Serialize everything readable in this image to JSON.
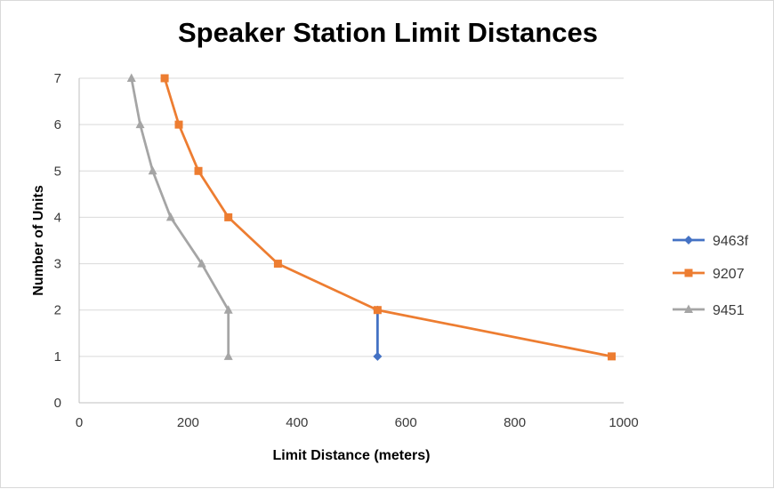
{
  "chart_data": {
    "type": "line",
    "title": "Speaker Station Limit Distances",
    "xlabel": "Limit Distance (meters)",
    "ylabel": "Number of Units",
    "xlim": [
      0,
      1000
    ],
    "ylim": [
      0,
      7
    ],
    "xticks": [
      0,
      200,
      400,
      600,
      800,
      1000
    ],
    "yticks": [
      0,
      1,
      2,
      3,
      4,
      5,
      6,
      7
    ],
    "grid": "horizontal",
    "legend_position": "right",
    "series": [
      {
        "name": "9463f",
        "color": "#4472c4",
        "marker": "diamond",
        "points": [
          [
            548,
            1
          ],
          [
            548,
            2
          ]
        ]
      },
      {
        "name": "9207",
        "color": "#ed7d31",
        "marker": "square",
        "points": [
          [
            978,
            1
          ],
          [
            548,
            2
          ],
          [
            365,
            3
          ],
          [
            274,
            4
          ],
          [
            219,
            5
          ],
          [
            183,
            6
          ],
          [
            157,
            7
          ]
        ]
      },
      {
        "name": "9451",
        "color": "#a5a5a5",
        "marker": "triangle",
        "points": [
          [
            274,
            1
          ],
          [
            274,
            2
          ],
          [
            225,
            3
          ],
          [
            168,
            4
          ],
          [
            135,
            5
          ],
          [
            112,
            6
          ],
          [
            96,
            7
          ]
        ]
      }
    ]
  }
}
